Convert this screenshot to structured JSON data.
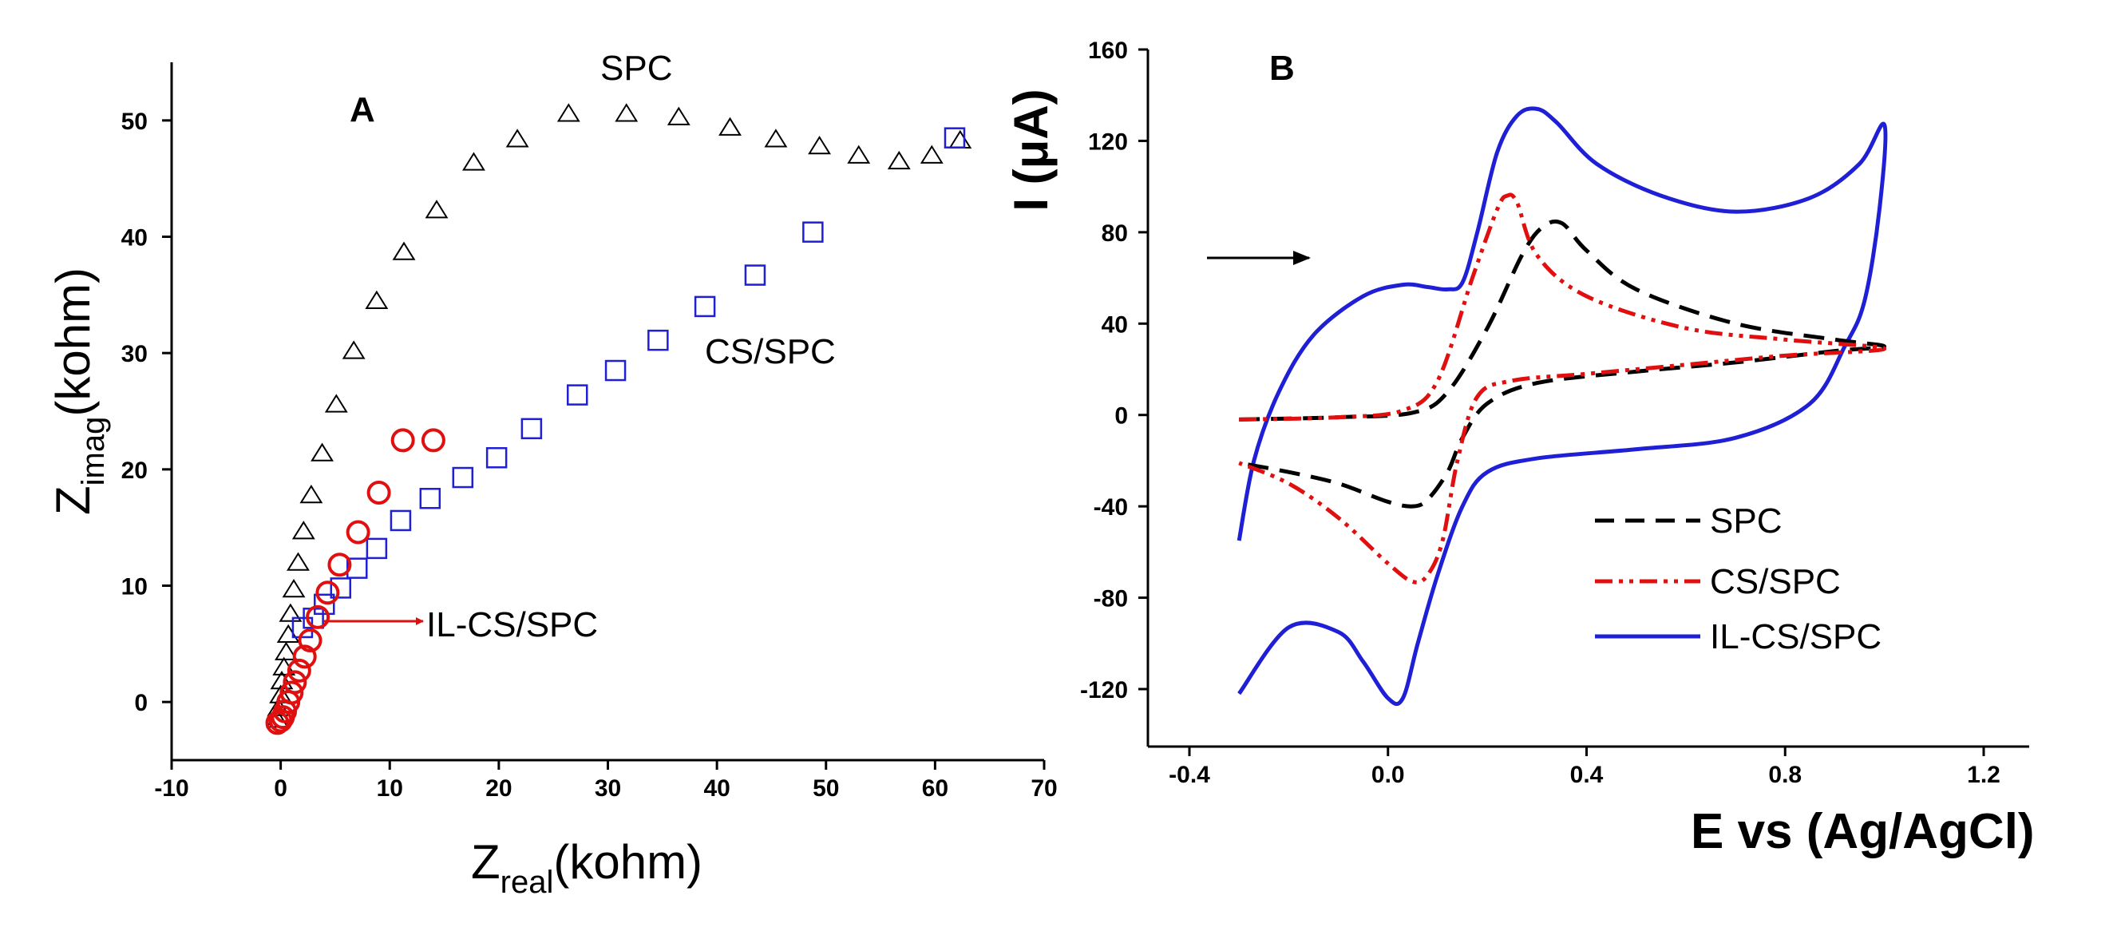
{
  "chart_data": [
    {
      "type": "scatter",
      "panel_label": "A",
      "xlabel_main": "Z",
      "xlabel_sub": "real",
      "xlabel_unit": "(kohm)",
      "ylabel_main": "Z",
      "ylabel_sub": "imag",
      "ylabel_unit": "(kohm)",
      "xlim": [
        -10,
        70
      ],
      "ylim": [
        -5,
        55
      ],
      "xticks": [
        -10,
        0,
        10,
        20,
        30,
        40,
        50,
        60,
        70
      ],
      "yticks": [
        0,
        10,
        20,
        30,
        40,
        50
      ],
      "colors": {
        "SPC": "#000000",
        "CS/SPC": "#1f1fd6",
        "IL-CS/SPC": "#e01010"
      },
      "annotations": {
        "spc": "SPC",
        "cs_spc": "CS/SPC",
        "il_cs_spc": "IL-CS/SPC"
      },
      "series": [
        {
          "name": "SPC",
          "marker": "triangle",
          "x": [
            -0.3,
            -0.2,
            0.0,
            0.1,
            0.3,
            0.5,
            0.7,
            0.9,
            1.2,
            1.6,
            2.1,
            2.8,
            3.8,
            5.1,
            6.7,
            8.8,
            11.3,
            14.3,
            17.7,
            21.7,
            26.4,
            31.7,
            36.5,
            41.2,
            45.4,
            49.4,
            53.0,
            56.7,
            59.7,
            62.3
          ],
          "y": [
            -1.5,
            -0.5,
            0.6,
            1.8,
            3.0,
            4.3,
            5.8,
            7.6,
            9.7,
            12.0,
            14.7,
            17.8,
            21.4,
            25.6,
            30.2,
            34.5,
            38.7,
            42.3,
            46.4,
            48.4,
            50.6,
            50.6,
            50.3,
            49.4,
            48.4,
            47.8,
            47.0,
            46.5,
            47.0,
            48.3
          ]
        },
        {
          "name": "CS/SPC",
          "marker": "square",
          "x": [
            2.0,
            3.0,
            4.0,
            5.5,
            7.0,
            8.8,
            11.0,
            13.7,
            16.7,
            19.8,
            23.0,
            27.2,
            30.7,
            34.6,
            38.9,
            43.5,
            48.8,
            61.8
          ],
          "y": [
            6.4,
            7.2,
            8.4,
            9.8,
            11.5,
            13.2,
            15.6,
            17.5,
            19.3,
            21.0,
            23.5,
            26.4,
            28.5,
            31.1,
            34.0,
            36.7,
            40.4,
            48.5
          ]
        },
        {
          "name": "IL-CS/SPC",
          "marker": "circle",
          "x": [
            -0.3,
            0.0,
            0.2,
            0.4,
            0.7,
            1.0,
            1.3,
            1.7,
            2.2,
            2.7,
            3.4,
            4.3,
            5.4,
            7.1,
            9.0,
            11.2,
            14.0
          ],
          "y": [
            -1.8,
            -1.6,
            -1.3,
            -0.8,
            0.0,
            0.8,
            1.7,
            2.7,
            3.9,
            5.3,
            7.3,
            9.4,
            11.8,
            14.6,
            18.0,
            22.5,
            22.5
          ]
        }
      ]
    },
    {
      "type": "line",
      "panel_label": "B",
      "xlabel": "E vs (Ag/AgCl)",
      "ylabel": "I (μA)",
      "xlim": [
        -0.45,
        1.3
      ],
      "ylim": [
        -150,
        160
      ],
      "xticks": [
        -0.4,
        0.0,
        0.4,
        0.8,
        1.2
      ],
      "yticks": [
        160,
        120,
        80,
        40,
        0,
        -40,
        -80,
        -120
      ],
      "xtick_labels": [
        "-0.4",
        "0.0",
        "0.4",
        "0.8",
        "1.2"
      ],
      "ytick_labels": [
        "160",
        "120",
        "80",
        "40",
        "0",
        "-40",
        "-80",
        "-120"
      ],
      "legend_position": "bottom-right",
      "scan_direction_arrow": "right",
      "series": [
        {
          "name": "SPC",
          "color": "#000000",
          "style": "dashed",
          "x": [
            -0.3,
            -0.1,
            0.05,
            0.12,
            0.2,
            0.27,
            0.31,
            0.35,
            0.4,
            0.5,
            0.7,
            0.9,
            1.0,
            0.9,
            0.7,
            0.5,
            0.3,
            0.2,
            0.15,
            0.12,
            0.08,
            0.05,
            0.0,
            -0.1,
            -0.2,
            -0.3
          ],
          "y": [
            -2,
            -1,
            1,
            10,
            38,
            70,
            82,
            84,
            72,
            55,
            40,
            33,
            30,
            28,
            23,
            19,
            14,
            5,
            -10,
            -25,
            -37,
            -40,
            -38,
            -30,
            -25,
            -21
          ]
        },
        {
          "name": "CS/SPC",
          "color": "#e01010",
          "style": "dashdotdot",
          "x": [
            -0.3,
            -0.1,
            0.03,
            0.1,
            0.17,
            0.22,
            0.24,
            0.26,
            0.3,
            0.4,
            0.6,
            0.8,
            1.0,
            0.8,
            0.6,
            0.4,
            0.25,
            0.18,
            0.14,
            0.11,
            0.08,
            0.05,
            0.0,
            -0.1,
            -0.2,
            -0.3
          ],
          "y": [
            -2,
            -1,
            2,
            15,
            60,
            90,
            96,
            93,
            70,
            52,
            38,
            33,
            29,
            26,
            22,
            18,
            15,
            8,
            -20,
            -55,
            -70,
            -73,
            -65,
            -45,
            -30,
            -21
          ]
        },
        {
          "name": "IL-CS/SPC",
          "color": "#1f1fd6",
          "style": "solid",
          "x": [
            -0.3,
            -0.27,
            -0.22,
            -0.15,
            -0.05,
            0.03,
            0.08,
            0.12,
            0.15,
            0.18,
            0.22,
            0.26,
            0.3,
            0.34,
            0.42,
            0.55,
            0.7,
            0.85,
            0.95,
            1.0,
            0.99,
            0.96,
            0.92,
            0.85,
            0.7,
            0.5,
            0.3,
            0.2,
            0.15,
            0.1,
            0.06,
            0.03,
            0.0,
            -0.05,
            -0.1,
            -0.2,
            -0.3
          ],
          "y": [
            -55,
            -20,
            10,
            35,
            52,
            57,
            56,
            55,
            58,
            80,
            115,
            131,
            134,
            128,
            110,
            96,
            89,
            95,
            110,
            127,
            90,
            50,
            30,
            5,
            -10,
            -15,
            -19,
            -25,
            -40,
            -70,
            -100,
            -124,
            -124,
            -108,
            -95,
            -93,
            -122
          ]
        }
      ]
    }
  ]
}
